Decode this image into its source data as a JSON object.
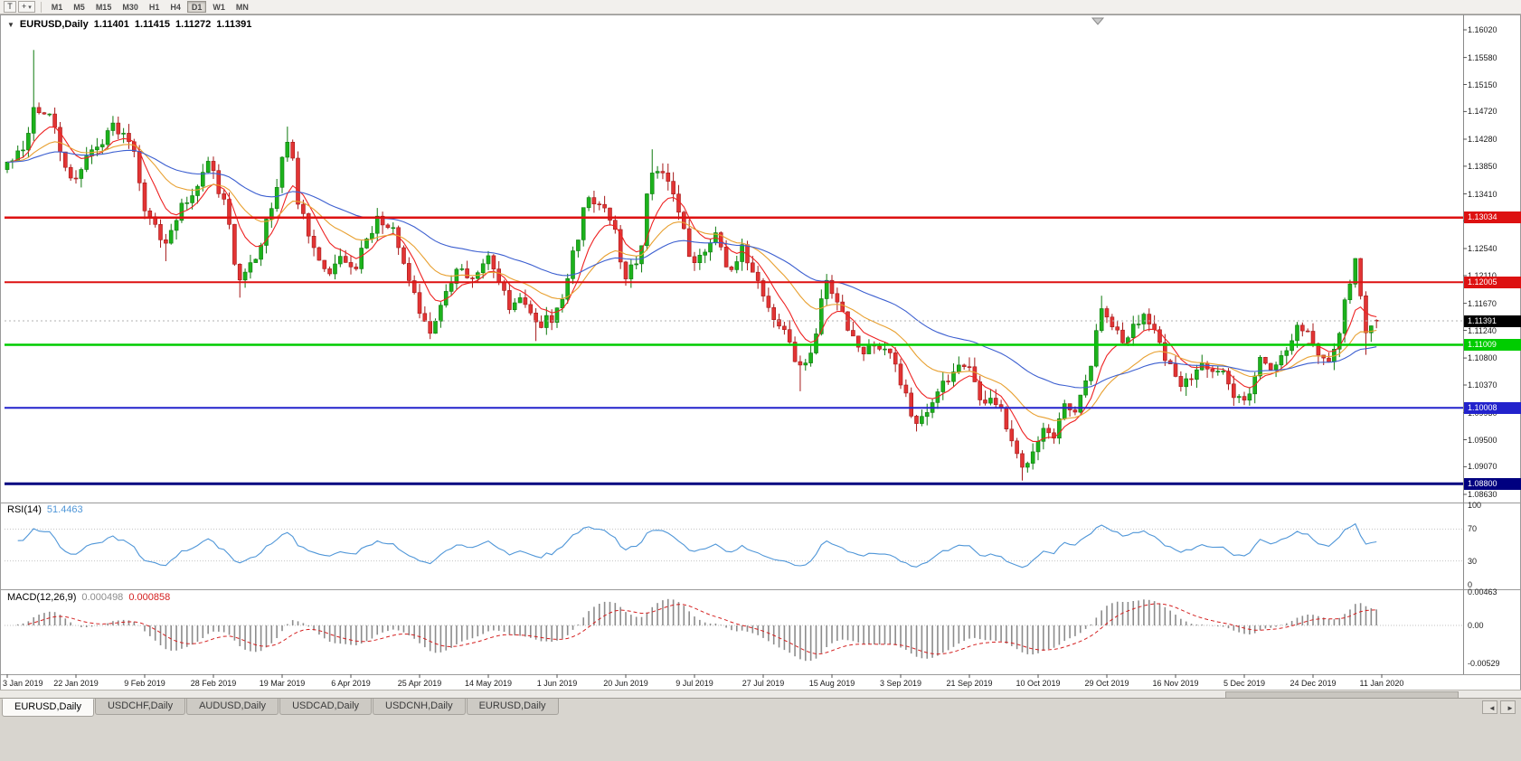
{
  "icons": {
    "title_triangle": "▼",
    "crosshair": "+",
    "dropdown": "▾",
    "tab_left": "◄",
    "tab_right": "►"
  },
  "toolbar": {
    "tool_button_label": "T",
    "timeframes": [
      "M1",
      "M5",
      "M15",
      "M30",
      "H1",
      "H4",
      "D1",
      "W1",
      "MN"
    ],
    "active_timeframe": "D1"
  },
  "chart": {
    "title": {
      "symbol": "EURUSD,Daily",
      "open": "1.11401",
      "high": "1.11415",
      "low": "1.11272",
      "close": "1.11391"
    },
    "price_axis_labels": [
      "1.16020",
      "1.15580",
      "1.15150",
      "1.14720",
      "1.14280",
      "1.13850",
      "1.13410",
      "1.12980",
      "1.12540",
      "1.12110",
      "1.11670",
      "1.11240",
      "1.10800",
      "1.10370",
      "1.09930",
      "1.09500",
      "1.09070",
      "1.08630"
    ],
    "current_price_tag": {
      "value": "1.11391",
      "bg": "#000000",
      "text_color": "#ffffff"
    },
    "hlines": [
      {
        "value": 1.13034,
        "label": "1.13034",
        "color": "#dd1111",
        "width": 2.5
      },
      {
        "value": 1.12005,
        "label": "1.12005",
        "color": "#dd1111",
        "width": 2
      },
      {
        "value": 1.11009,
        "label": "1.11009",
        "color": "#00cc00",
        "width": 2.5
      },
      {
        "value": 1.10008,
        "label": "1.10008",
        "color": "#2222cc",
        "width": 2
      },
      {
        "value": 1.088,
        "label": "1.08800",
        "color": "#000080",
        "width": 3
      }
    ],
    "candle_colors": {
      "bull_fill": "#1cb21c",
      "bull_border": "#0e7a0e",
      "bear_fill": "#e23434",
      "bear_border": "#a51818"
    },
    "bid_line_color": "#b0b0b0"
  },
  "rsi_panel": {
    "name": "RSI(14)",
    "value": "51.4463",
    "axis_labels": [
      "100",
      "70",
      "30",
      "0"
    ],
    "levels": [
      70,
      30
    ],
    "line_color": "#4f96d8"
  },
  "macd_panel": {
    "name": "MACD(12,26,9)",
    "main_value": "0.000498",
    "signal_value": "0.000858",
    "axis_labels": [
      "0.00463",
      "0.00",
      "-0.00529"
    ],
    "histogram_color": "#8c8c8c",
    "signal_color": "#d42020"
  },
  "time_axis_labels": [
    "3 Jan 2019",
    "22 Jan 2019",
    "9 Feb 2019",
    "28 Feb 2019",
    "19 Mar 2019",
    "6 Apr 2019",
    "25 Apr 2019",
    "14 May 2019",
    "1 Jun 2019",
    "20 Jun 2019",
    "9 Jul 2019",
    "27 Jul 2019",
    "15 Aug 2019",
    "3 Sep 2019",
    "21 Sep 2019",
    "10 Oct 2019",
    "29 Oct 2019",
    "16 Nov 2019",
    "5 Dec 2019",
    "24 Dec 2019",
    "11 Jan 2020"
  ],
  "tabs": [
    "EURUSD,Daily",
    "USDCHF,Daily",
    "AUDUSD,Daily",
    "USDCAD,Daily",
    "USDCNH,Daily",
    "EURUSD,Daily"
  ],
  "active_tab_index": 0,
  "chart_data": {
    "type": "candlestick",
    "symbol": "EURUSD",
    "period": "Daily",
    "date_range": [
      "3 Jan 2019",
      "11 Jan 2020"
    ],
    "bars": 260,
    "price_range_visible": [
      1.0863,
      1.1602
    ],
    "last_bar_ohlc": {
      "open": 1.11401,
      "high": 1.11415,
      "low": 1.11272,
      "close": 1.11391
    },
    "horizontal_levels": [
      1.13034,
      1.12005,
      1.11009,
      1.10008,
      1.088
    ],
    "close_anchors": [
      [
        0,
        1.139
      ],
      [
        3,
        1.1408
      ],
      [
        5,
        1.1478
      ],
      [
        8,
        1.1462
      ],
      [
        12,
        1.1362
      ],
      [
        16,
        1.1408
      ],
      [
        20,
        1.1448
      ],
      [
        23,
        1.1432
      ],
      [
        27,
        1.13
      ],
      [
        30,
        1.1268
      ],
      [
        34,
        1.133
      ],
      [
        38,
        1.1392
      ],
      [
        41,
        1.133
      ],
      [
        44,
        1.12
      ],
      [
        47,
        1.1242
      ],
      [
        50,
        1.1325
      ],
      [
        53,
        1.142
      ],
      [
        56,
        1.1302
      ],
      [
        58,
        1.1248
      ],
      [
        61,
        1.1222
      ],
      [
        63,
        1.1242
      ],
      [
        65,
        1.1218
      ],
      [
        68,
        1.1262
      ],
      [
        70,
        1.1302
      ],
      [
        73,
        1.1282
      ],
      [
        76,
        1.1202
      ],
      [
        78,
        1.1152
      ],
      [
        80,
        1.1122
      ],
      [
        83,
        1.1182
      ],
      [
        85,
        1.1222
      ],
      [
        88,
        1.1198
      ],
      [
        91,
        1.1242
      ],
      [
        93,
        1.1208
      ],
      [
        95,
        1.116
      ],
      [
        98,
        1.1172
      ],
      [
        100,
        1.1132
      ],
      [
        103,
        1.1142
      ],
      [
        105,
        1.117
      ],
      [
        107,
        1.1252
      ],
      [
        110,
        1.1338
      ],
      [
        112,
        1.1322
      ],
      [
        114,
        1.1302
      ],
      [
        117,
        1.1212
      ],
      [
        119,
        1.1232
      ],
      [
        122,
        1.1372
      ],
      [
        125,
        1.1366
      ],
      [
        127,
        1.1312
      ],
      [
        130,
        1.1228
      ],
      [
        132,
        1.1252
      ],
      [
        134,
        1.1282
      ],
      [
        137,
        1.1212
      ],
      [
        139,
        1.1252
      ],
      [
        141,
        1.1222
      ],
      [
        143,
        1.1182
      ],
      [
        145,
        1.1142
      ],
      [
        147,
        1.1122
      ],
      [
        150,
        1.1062
      ],
      [
        152,
        1.1088
      ],
      [
        155,
        1.1202
      ],
      [
        157,
        1.1172
      ],
      [
        160,
        1.1112
      ],
      [
        162,
        1.1092
      ],
      [
        164,
        1.1102
      ],
      [
        167,
        1.1096
      ],
      [
        169,
        1.1042
      ],
      [
        172,
        1.0972
      ],
      [
        174,
        1.0988
      ],
      [
        176,
        1.1032
      ],
      [
        178,
        1.1042
      ],
      [
        180,
        1.1062
      ],
      [
        182,
        1.1072
      ],
      [
        184,
        1.1008
      ],
      [
        186,
        1.1018
      ],
      [
        188,
        1.0992
      ],
      [
        190,
        1.0942
      ],
      [
        192,
        1.0902
      ],
      [
        194,
        1.0938
      ],
      [
        196,
        1.0968
      ],
      [
        198,
        1.0948
      ],
      [
        200,
        1.1002
      ],
      [
        202,
        1.0988
      ],
      [
        204,
        1.1042
      ],
      [
        207,
        1.1152
      ],
      [
        209,
        1.1132
      ],
      [
        211,
        1.1102
      ],
      [
        213,
        1.1128
      ],
      [
        215,
        1.1152
      ],
      [
        217,
        1.1132
      ],
      [
        219,
        1.1072
      ],
      [
        222,
        1.1035
      ],
      [
        224,
        1.1052
      ],
      [
        226,
        1.1078
      ],
      [
        228,
        1.1062
      ],
      [
        230,
        1.1058
      ],
      [
        232,
        1.1012
      ],
      [
        235,
        1.102
      ],
      [
        237,
        1.1082
      ],
      [
        239,
        1.1062
      ],
      [
        242,
        1.1095
      ],
      [
        244,
        1.1132
      ],
      [
        246,
        1.1122
      ],
      [
        248,
        1.1082
      ],
      [
        250,
        1.108
      ],
      [
        252,
        1.1125
      ],
      [
        254,
        1.1205
      ],
      [
        255,
        1.1232
      ],
      [
        256,
        1.118
      ],
      [
        257,
        1.112
      ],
      [
        258,
        1.1138
      ],
      [
        259,
        1.11391
      ]
    ],
    "wick_extremes": {
      "5": {
        "h": 1.157
      },
      "30": {
        "l": 1.1234
      },
      "44": {
        "l": 1.1176
      },
      "53": {
        "h": 1.1448
      },
      "80": {
        "l": 1.111
      },
      "100": {
        "l": 1.1107
      },
      "122": {
        "h": 1.1412
      },
      "150": {
        "l": 1.1027
      },
      "172": {
        "l": 1.0963
      },
      "192": {
        "l": 1.0885
      },
      "207": {
        "h": 1.1179
      },
      "255": {
        "h": 1.1239
      },
      "257": {
        "l": 1.1085
      }
    },
    "moving_averages": [
      {
        "type": "ema",
        "period": 8,
        "color": "#ee2222"
      },
      {
        "type": "ema",
        "period": 21,
        "color": "#e8a030"
      },
      {
        "type": "ema",
        "period": 50,
        "color": "#3c5fd0"
      }
    ],
    "indicators": [
      {
        "name": "RSI",
        "period": 14,
        "current": 51.4463
      },
      {
        "name": "MACD",
        "fast": 12,
        "slow": 26,
        "signal": 9,
        "current_main": 0.000498,
        "current_signal": 0.000858
      }
    ]
  }
}
